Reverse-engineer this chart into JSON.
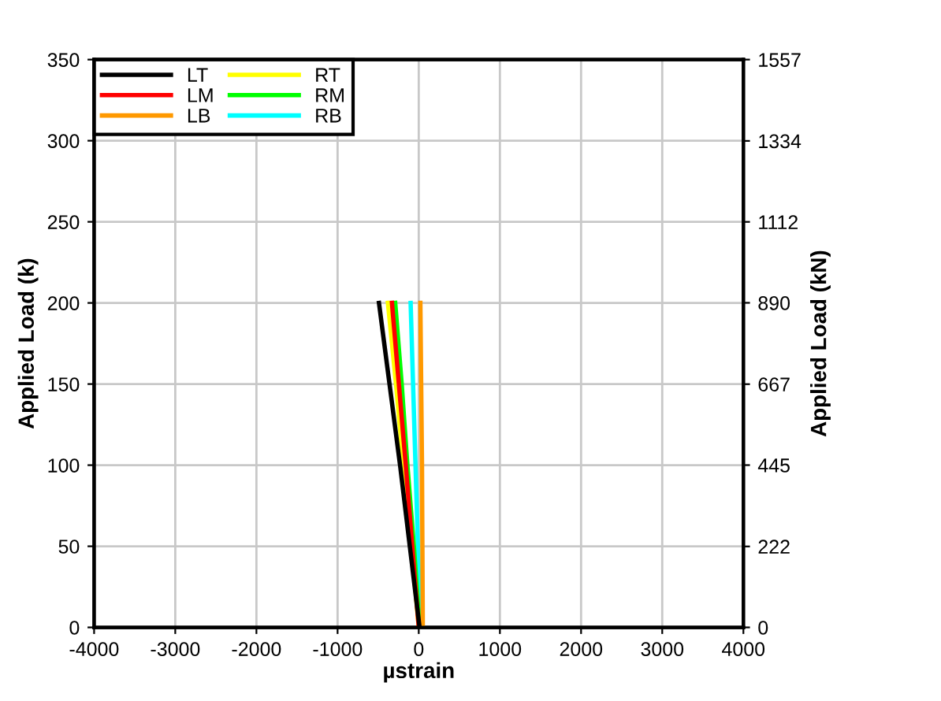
{
  "chart_data": {
    "type": "line",
    "xlabel": "µstrain",
    "ylabel": "Applied Load (k)",
    "y2label": "Applied Load (kN)",
    "xlim": [
      -4000,
      4000
    ],
    "xticks": [
      -4000,
      -3000,
      -2000,
      -1000,
      0,
      1000,
      2000,
      3000,
      4000
    ],
    "ylim": [
      0,
      350
    ],
    "yticks": [
      0,
      50,
      100,
      150,
      200,
      250,
      300,
      350
    ],
    "y2lim": [
      0,
      1557
    ],
    "y2ticks": [
      0,
      222,
      445,
      667,
      890,
      1112,
      1334,
      1557
    ],
    "grid": true,
    "legend": "top left",
    "marker": "none",
    "line_style": "solid",
    "series": [
      {
        "name": "LT",
        "color": "#000000",
        "x": [
          10,
          -110,
          -230,
          -360,
          -490
        ],
        "values": [
          0,
          50,
          100,
          150,
          200
        ]
      },
      {
        "name": "LM",
        "color": "#ff0000",
        "x": [
          0,
          -80,
          -160,
          -245,
          -330
        ],
        "values": [
          0,
          50,
          100,
          150,
          200
        ]
      },
      {
        "name": "LB",
        "color": "#ff9900",
        "x": [
          50,
          45,
          40,
          30,
          20
        ],
        "values": [
          0,
          50,
          100,
          150,
          200
        ]
      },
      {
        "name": "RT",
        "color": "#ffff00",
        "x": [
          0,
          -90,
          -190,
          -280,
          -380
        ],
        "values": [
          0,
          50,
          100,
          150,
          200
        ]
      },
      {
        "name": "RM",
        "color": "#00ff00",
        "x": [
          10,
          -60,
          -140,
          -210,
          -290
        ],
        "values": [
          0,
          50,
          100,
          150,
          200
        ]
      },
      {
        "name": "RB",
        "color": "#00ffff",
        "x": [
          20,
          -10,
          -40,
          -70,
          -100
        ],
        "values": [
          0,
          50,
          100,
          150,
          200
        ]
      }
    ]
  }
}
